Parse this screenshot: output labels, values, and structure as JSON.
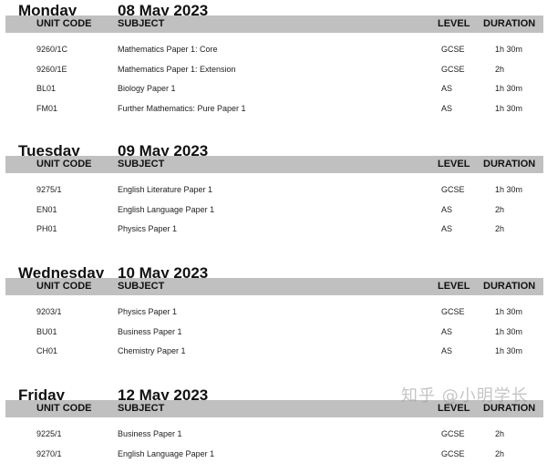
{
  "headers": {
    "unit_code": "UNIT CODE",
    "subject": "SUBJECT",
    "level": "LEVEL",
    "duration": "DURATION"
  },
  "days": [
    {
      "day": "Monday",
      "date": "08 May 2023",
      "rows": [
        {
          "code": "9260/1C",
          "subject": "Mathematics Paper 1: Core",
          "level": "GCSE",
          "duration": "1h 30m"
        },
        {
          "code": "9260/1E",
          "subject": "Mathematics Paper 1: Extension",
          "level": "GCSE",
          "duration": "2h"
        },
        {
          "code": "BL01",
          "subject": "Biology Paper 1",
          "level": "AS",
          "duration": "1h 30m"
        },
        {
          "code": "FM01",
          "subject": "Further Mathematics: Pure Paper 1",
          "level": "AS",
          "duration": "1h 30m"
        }
      ]
    },
    {
      "day": "Tuesday",
      "date": "09 May 2023",
      "rows": [
        {
          "code": "9275/1",
          "subject": "English Literature Paper 1",
          "level": "GCSE",
          "duration": "1h 30m"
        },
        {
          "code": "EN01",
          "subject": "English Language Paper 1",
          "level": "AS",
          "duration": "2h"
        },
        {
          "code": "PH01",
          "subject": "Physics Paper 1",
          "level": "AS",
          "duration": "2h"
        }
      ]
    },
    {
      "day": "Wednesday",
      "date": "10 May 2023",
      "rows": [
        {
          "code": "9203/1",
          "subject": "Physics Paper 1",
          "level": "GCSE",
          "duration": "1h 30m"
        },
        {
          "code": "BU01",
          "subject": "Business Paper 1",
          "level": "AS",
          "duration": "1h 30m"
        },
        {
          "code": "CH01",
          "subject": "Chemistry Paper 1",
          "level": "AS",
          "duration": "1h 30m"
        }
      ]
    },
    {
      "day": "Friday",
      "date": "12 May 2023",
      "rows": [
        {
          "code": "9225/1",
          "subject": "Business Paper 1",
          "level": "GCSE",
          "duration": "2h"
        },
        {
          "code": "9270/1",
          "subject": "English Language Paper 1",
          "level": "GCSE",
          "duration": "2h"
        }
      ]
    }
  ],
  "watermark": "知乎 @小明学长"
}
